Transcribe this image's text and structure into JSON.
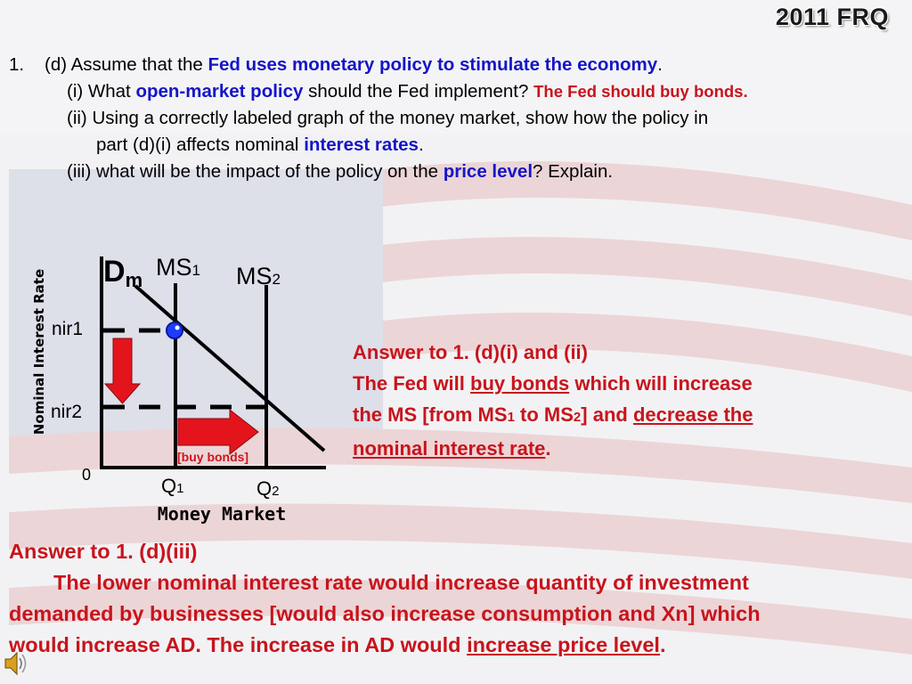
{
  "header": {
    "title": "2011 FRQ"
  },
  "question": {
    "number": "1.",
    "part_d_intro": "(d) Assume that the",
    "part_d_highlight": "Fed uses monetary policy to stimulate the economy",
    "part_d_end": ".",
    "i_pre": "(i) What",
    "i_highlight": "open-market policy",
    "i_post": "should the Fed implement?",
    "i_answer": "The Fed should buy bonds.",
    "ii_line1": "(ii) Using a correctly labeled graph of the money market, show how the policy in",
    "ii_line2_pre": "part (d)(i) affects nominal",
    "ii_highlight": "interest rates",
    "ii_line2_end": ".",
    "iii_pre": "(iii) what will be the impact of the policy on the",
    "iii_highlight": "price level",
    "iii_post": "? Explain."
  },
  "graph": {
    "ylabel": "Nominal Interest Rate",
    "xlabel": "Money Market",
    "dm_main": "D",
    "dm_sub": "m",
    "ms1_main": "MS",
    "ms1_sub": "1",
    "ms2_main": "MS",
    "ms2_sub": "2",
    "nir1": "nir1",
    "nir2": "nir2",
    "origin": "0",
    "q1_main": "Q",
    "q1_sub": "1",
    "q2_main": "Q",
    "q2_sub": "2",
    "arrow_label": "[buy bonds]",
    "colors": {
      "axis": "#000000",
      "arrow": "#e3141c",
      "point": "#1e3cff"
    }
  },
  "answer1": {
    "heading": "Answer to 1. (d)(i) and (ii)",
    "l2_pre": "The Fed will",
    "l2_u": "buy bonds",
    "l2_post": "which will increase",
    "l3_pre": "the MS [from MS",
    "l3_sub1": "1",
    "l3_mid": "to MS",
    "l3_sub2": "2",
    "l3_post": "] and",
    "l3_u": "decrease the",
    "l4_u": "nominal interest rate",
    "l4_end": "."
  },
  "answer2": {
    "heading": "Answer to 1. (d)(iii)",
    "l1": "The lower nominal interest rate would increase quantity of investment",
    "l2": "demanded by businesses [would also increase consumption and Xn] which",
    "l3_pre": "would increase AD. The increase in AD would",
    "l3_u": "increase price level",
    "l3_end": "."
  },
  "icons": {
    "speaker": "speaker-icon"
  }
}
